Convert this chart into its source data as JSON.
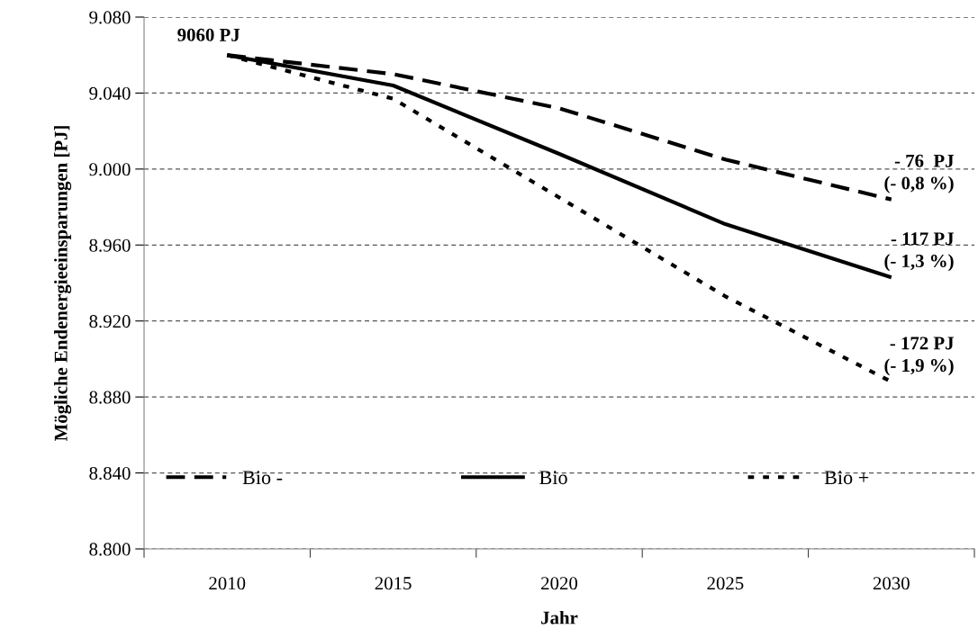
{
  "chart_data": {
    "type": "line",
    "xlabel": "Jahr",
    "ylabel": "Mögliche Endenergieeinsparungen [PJ]",
    "categories": [
      "2010",
      "2015",
      "2020",
      "2025",
      "2030"
    ],
    "series": [
      {
        "name": "Bio -",
        "color": "#000000",
        "line_style": "dashed",
        "values": [
          9060,
          9050,
          9032,
          9005,
          8984
        ]
      },
      {
        "name": "Bio",
        "color": "#000000",
        "line_style": "solid",
        "values": [
          9060,
          9044,
          9008,
          8971,
          8943
        ]
      },
      {
        "name": "Bio +",
        "color": "#000000",
        "line_style": "dotted",
        "values": [
          9060,
          9037,
          8985,
          8933,
          8888
        ]
      }
    ],
    "ylim": [
      8800,
      9080
    ],
    "yticks": [
      {
        "value": 8800,
        "label": "8.800"
      },
      {
        "value": 8840,
        "label": "8.840"
      },
      {
        "value": 8880,
        "label": "8.880"
      },
      {
        "value": 8920,
        "label": "8.920"
      },
      {
        "value": 8960,
        "label": "8.960"
      },
      {
        "value": 9000,
        "label": "9.000"
      },
      {
        "value": 9040,
        "label": "9.040"
      },
      {
        "value": 9080,
        "label": "9.080"
      }
    ],
    "grid": "y",
    "legend": "bottom",
    "marker": "none",
    "annotations": [
      {
        "text": "9060 PJ",
        "x": "2010",
        "y": 9060
      },
      {
        "text": "- 76  PJ\n(- 0,8 %)",
        "x": "2030",
        "y": 8984
      },
      {
        "text": "- 117 PJ\n(- 1,3 %)",
        "x": "2030",
        "y": 8943
      },
      {
        "text": "- 172 PJ\n(- 1,9 %)",
        "x": "2030",
        "y": 8888
      }
    ]
  }
}
